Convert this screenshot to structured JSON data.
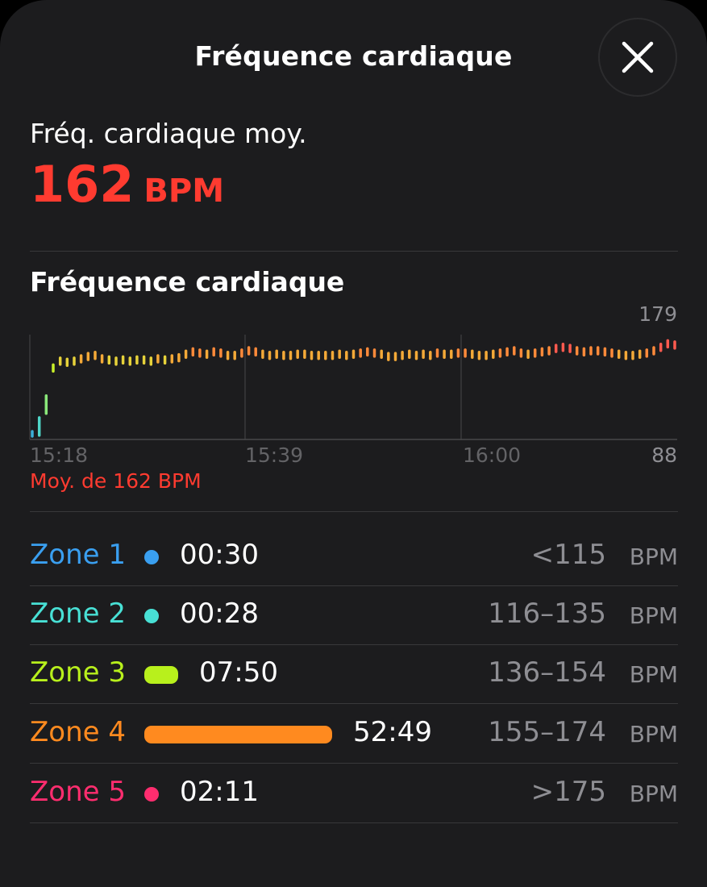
{
  "header": {
    "title": "Fréquence cardiaque"
  },
  "summary": {
    "label": "Fréq. cardiaque moy.",
    "value": "162",
    "unit": "BPM"
  },
  "chart": {
    "title": "Fréquence cardiaque",
    "footer": "Moy. de 162 BPM"
  },
  "chart_data": {
    "type": "line",
    "title": "Fréquence cardiaque",
    "x_tick_labels": [
      "15:18",
      "15:39",
      "16:00"
    ],
    "x_start_minutes_after_15h": 18,
    "x_end_minutes_after_15h": 81,
    "y_range": [
      88,
      179
    ],
    "y_tick_labels": {
      "max": "179",
      "min": "88"
    },
    "annotation": "Moy. de 162 BPM",
    "series": [
      {
        "values": [
          95,
          107,
          126,
          150,
          156,
          155,
          156,
          158,
          160,
          161,
          158,
          157,
          156,
          157,
          156,
          157,
          157,
          156,
          158,
          157,
          158,
          159,
          162,
          164,
          163,
          162,
          164,
          163,
          161,
          161,
          163,
          165,
          164,
          162,
          161,
          162,
          161,
          161,
          162,
          162,
          161,
          161,
          161,
          161,
          162,
          161,
          162,
          163,
          164,
          163,
          162,
          160,
          160,
          161,
          162,
          161,
          162,
          161,
          163,
          162,
          162,
          163,
          163,
          162,
          161,
          161,
          162,
          163,
          164,
          165,
          163,
          162,
          163,
          164,
          165,
          167,
          168,
          167,
          165,
          164,
          165,
          165,
          164,
          163,
          162,
          161,
          161,
          162,
          163,
          165,
          168,
          171,
          170
        ]
      }
    ]
  },
  "zones": [
    {
      "name": "Zone 1",
      "time": "00:30",
      "range": "<115",
      "unit": "BPM",
      "color": "#3a9ff0",
      "share": 0.008
    },
    {
      "name": "Zone 2",
      "time": "00:28",
      "range": "116–135",
      "unit": "BPM",
      "color": "#48e0d5",
      "share": 0.007
    },
    {
      "name": "Zone 3",
      "time": "07:50",
      "range": "136–154",
      "unit": "BPM",
      "color": "#b8f01c",
      "share": 0.124
    },
    {
      "name": "Zone 4",
      "time": "52:49",
      "range": "155–174",
      "unit": "BPM",
      "color": "#ff8a1f",
      "share": 0.827
    },
    {
      "name": "Zone 5",
      "time": "02:11",
      "range": ">175",
      "unit": "BPM",
      "color": "#ff2d6f",
      "share": 0.035
    }
  ],
  "colors": {
    "accent": "#ff3b30",
    "background": "#1c1c1e",
    "secondary_text": "#8e8e93"
  },
  "icons": {
    "close": "close-icon"
  }
}
